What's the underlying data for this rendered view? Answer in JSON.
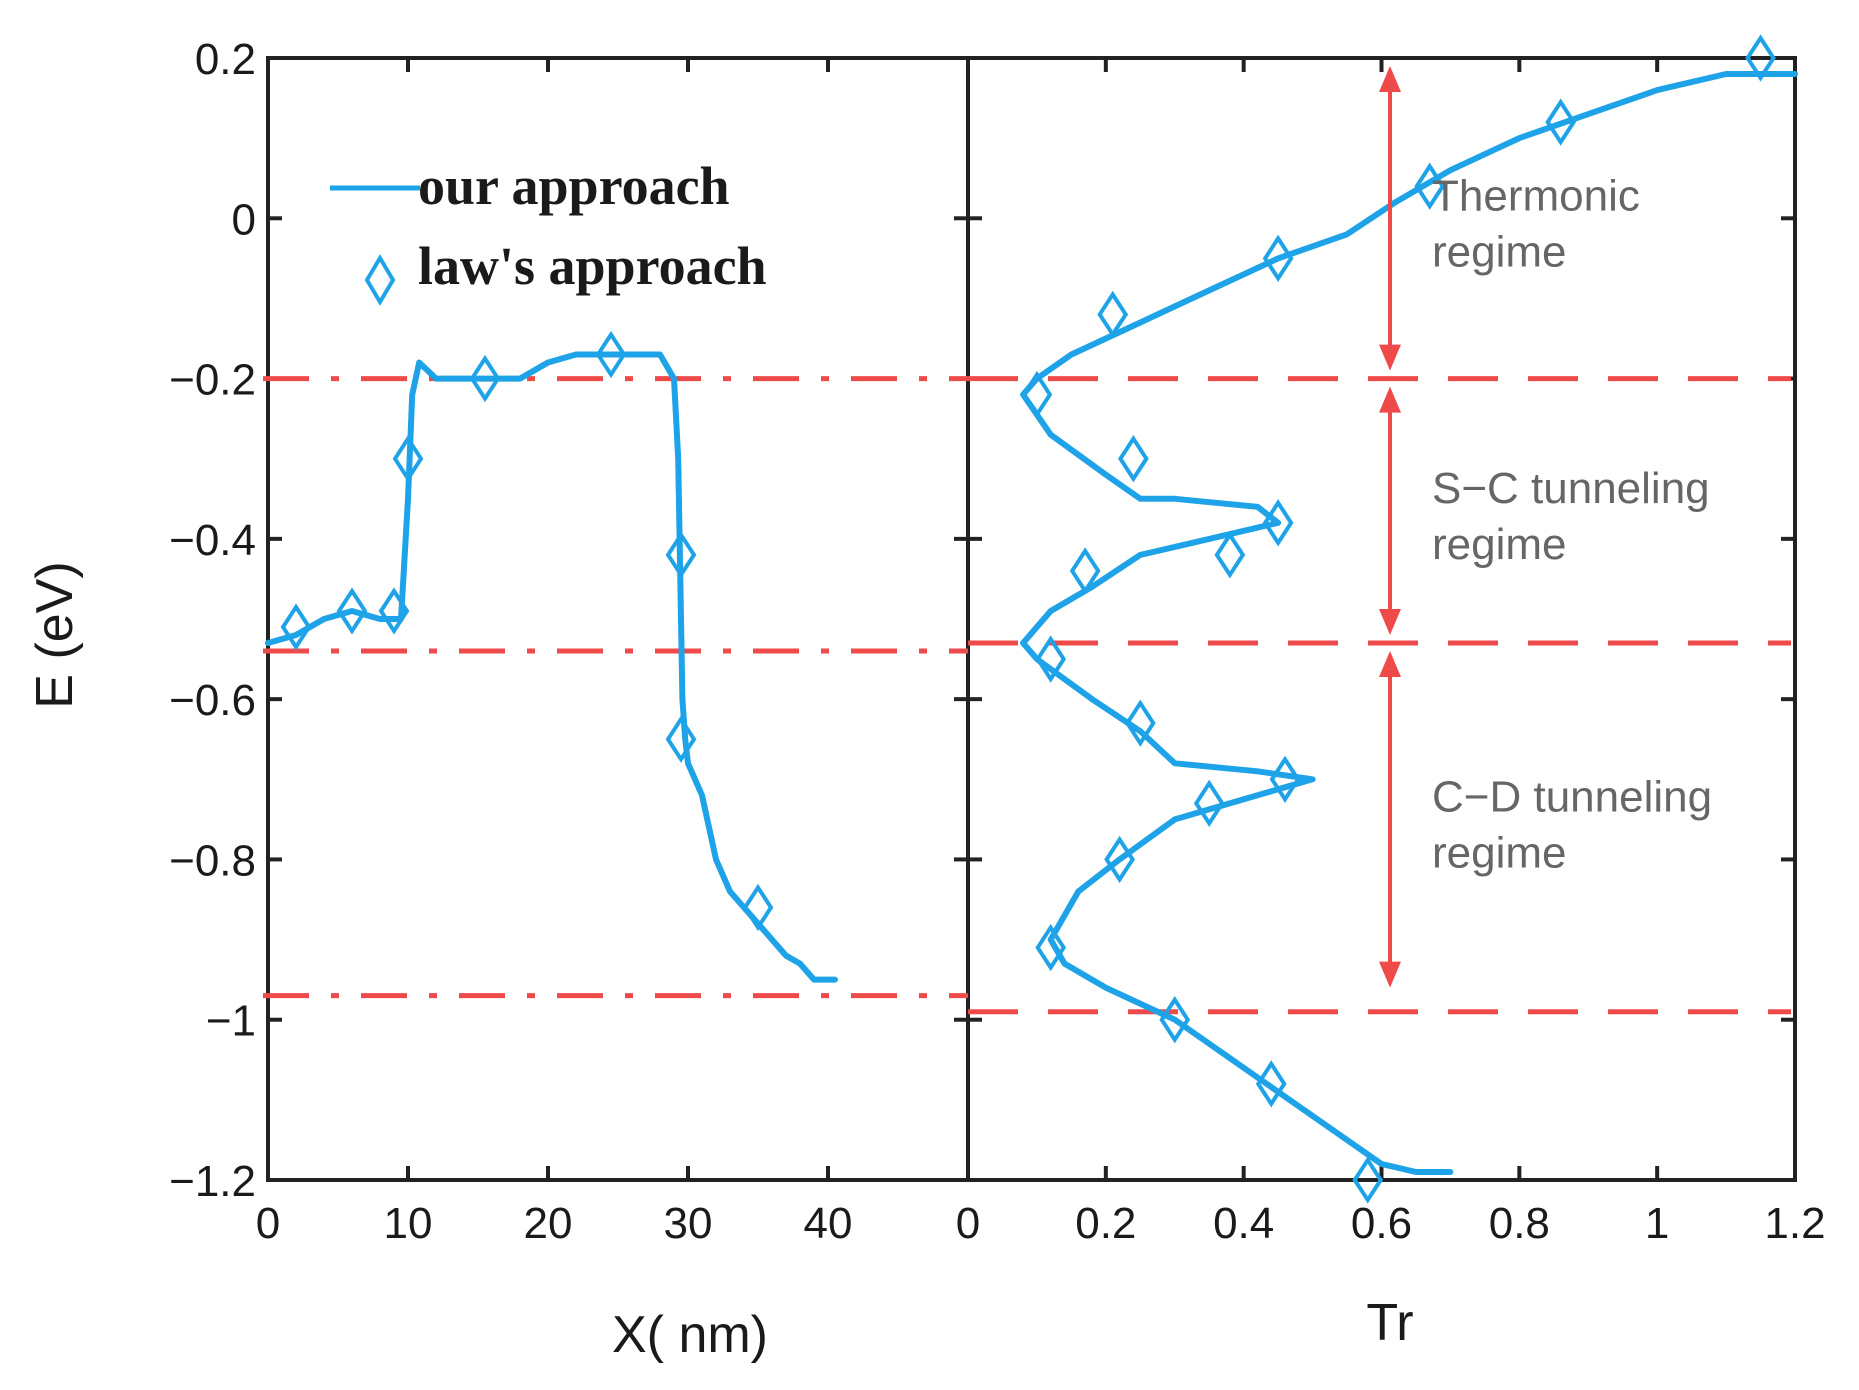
{
  "chart_data": [
    {
      "type": "line",
      "panel": "left",
      "xlabel": "X( nm)",
      "ylabel": "E (eV)",
      "xlim": [
        0,
        50
      ],
      "ylim": [
        -1.2,
        0.2
      ],
      "xticks": [
        0,
        10,
        20,
        30,
        40
      ],
      "yticks": [
        0.2,
        0,
        -0.2,
        -0.4,
        -0.6,
        -0.8,
        -1,
        -1.2
      ],
      "xtick_labels": [
        "0",
        "10",
        "20",
        "30",
        "40"
      ],
      "ytick_labels": [
        "0.2",
        "0",
        "−0.2",
        "−0.4",
        "−0.6",
        "−0.8",
        "−1",
        "−1.2"
      ],
      "legend": [
        {
          "label": "our approach",
          "style": "line"
        },
        {
          "label": "law's approach",
          "style": "diamond"
        }
      ],
      "series": [
        {
          "name": "our approach",
          "x": [
            0,
            2,
            4,
            6,
            8,
            9.5,
            10,
            10.3,
            10.8,
            12,
            14,
            16,
            18,
            20,
            22,
            24,
            26,
            28,
            29,
            29.3,
            29.4,
            29.5,
            29.6,
            29.8,
            30,
            31,
            32,
            33,
            34,
            35,
            36,
            37,
            38,
            39,
            40.5
          ],
          "y": [
            -0.53,
            -0.52,
            -0.5,
            -0.49,
            -0.5,
            -0.5,
            -0.35,
            -0.22,
            -0.18,
            -0.2,
            -0.2,
            -0.2,
            -0.2,
            -0.18,
            -0.17,
            -0.17,
            -0.17,
            -0.17,
            -0.2,
            -0.3,
            -0.4,
            -0.5,
            -0.6,
            -0.65,
            -0.68,
            -0.72,
            -0.8,
            -0.84,
            -0.86,
            -0.88,
            -0.9,
            -0.92,
            -0.93,
            -0.95,
            -0.95
          ]
        },
        {
          "name": "law's approach",
          "marker": "diamond",
          "x": [
            2,
            6,
            9,
            10,
            15.5,
            24.5,
            29.5,
            29.5,
            35
          ],
          "y": [
            -0.51,
            -0.49,
            -0.49,
            -0.3,
            -0.2,
            -0.17,
            -0.42,
            -0.65,
            -0.86
          ]
        }
      ],
      "reference_lines": [
        {
          "y": -0.2,
          "style": "dash-dot"
        },
        {
          "y": -0.54,
          "style": "dash-dot"
        },
        {
          "y": -0.97,
          "style": "dash-dot"
        }
      ]
    },
    {
      "type": "line",
      "panel": "right",
      "xlabel": "Tr",
      "xlim": [
        0,
        1.2
      ],
      "ylim": [
        -1.2,
        0.2
      ],
      "xticks": [
        0,
        0.2,
        0.4,
        0.6,
        0.8,
        1,
        1.2
      ],
      "xtick_labels": [
        "0",
        "0.2",
        "0.4",
        "0.6",
        "0.8",
        "1",
        "1.2"
      ],
      "series": [
        {
          "name": "our approach",
          "x": [
            1.2,
            1.1,
            1.0,
            0.9,
            0.8,
            0.7,
            0.62,
            0.55,
            0.45,
            0.35,
            0.25,
            0.15,
            0.1,
            0.08,
            0.12,
            0.2,
            0.25,
            0.3,
            0.42,
            0.45,
            0.35,
            0.25,
            0.18,
            0.12,
            0.08,
            0.1,
            0.18,
            0.25,
            0.3,
            0.42,
            0.5,
            0.42,
            0.3,
            0.22,
            0.16,
            0.12,
            0.14,
            0.2,
            0.3,
            0.4,
            0.5,
            0.6,
            0.65,
            0.7
          ],
          "y": [
            0.18,
            0.18,
            0.16,
            0.13,
            0.1,
            0.06,
            0.02,
            -0.02,
            -0.05,
            -0.09,
            -0.13,
            -0.17,
            -0.2,
            -0.22,
            -0.27,
            -0.32,
            -0.35,
            -0.35,
            -0.36,
            -0.38,
            -0.4,
            -0.42,
            -0.46,
            -0.49,
            -0.53,
            -0.55,
            -0.6,
            -0.64,
            -0.68,
            -0.69,
            -0.7,
            -0.72,
            -0.75,
            -0.8,
            -0.84,
            -0.9,
            -0.93,
            -0.96,
            -1.0,
            -1.06,
            -1.12,
            -1.18,
            -1.19,
            -1.19
          ]
        },
        {
          "name": "law's approach",
          "marker": "diamond",
          "x": [
            1.15,
            0.86,
            0.67,
            0.45,
            0.21,
            0.1,
            0.24,
            0.45,
            0.38,
            0.17,
            0.12,
            0.25,
            0.46,
            0.35,
            0.22,
            0.12,
            0.3,
            0.44,
            0.58
          ],
          "y": [
            0.2,
            0.12,
            0.04,
            -0.05,
            -0.12,
            -0.22,
            -0.3,
            -0.38,
            -0.42,
            -0.44,
            -0.55,
            -0.63,
            -0.7,
            -0.73,
            -0.8,
            -0.91,
            -1.0,
            -1.08,
            -1.2
          ]
        }
      ],
      "reference_lines": [
        {
          "y": -0.2,
          "style": "dash"
        },
        {
          "y": -0.53,
          "style": "dash"
        },
        {
          "y": -0.99,
          "style": "dash"
        }
      ],
      "annotations": [
        {
          "line1": "Thermonic",
          "line2": "regime",
          "y_from": 0.2,
          "y_to": -0.2
        },
        {
          "line1": "S−C tunneling",
          "line2": "regime",
          "y_from": -0.2,
          "y_to": -0.53
        },
        {
          "line1": "C−D tunneling",
          "line2": "regime",
          "y_from": -0.53,
          "y_to": -0.97
        }
      ]
    }
  ],
  "colors": {
    "series": "#1fa3e8",
    "reference": "#ef4a4a",
    "arrow": "#ef4a4a",
    "axis": "#222222"
  }
}
